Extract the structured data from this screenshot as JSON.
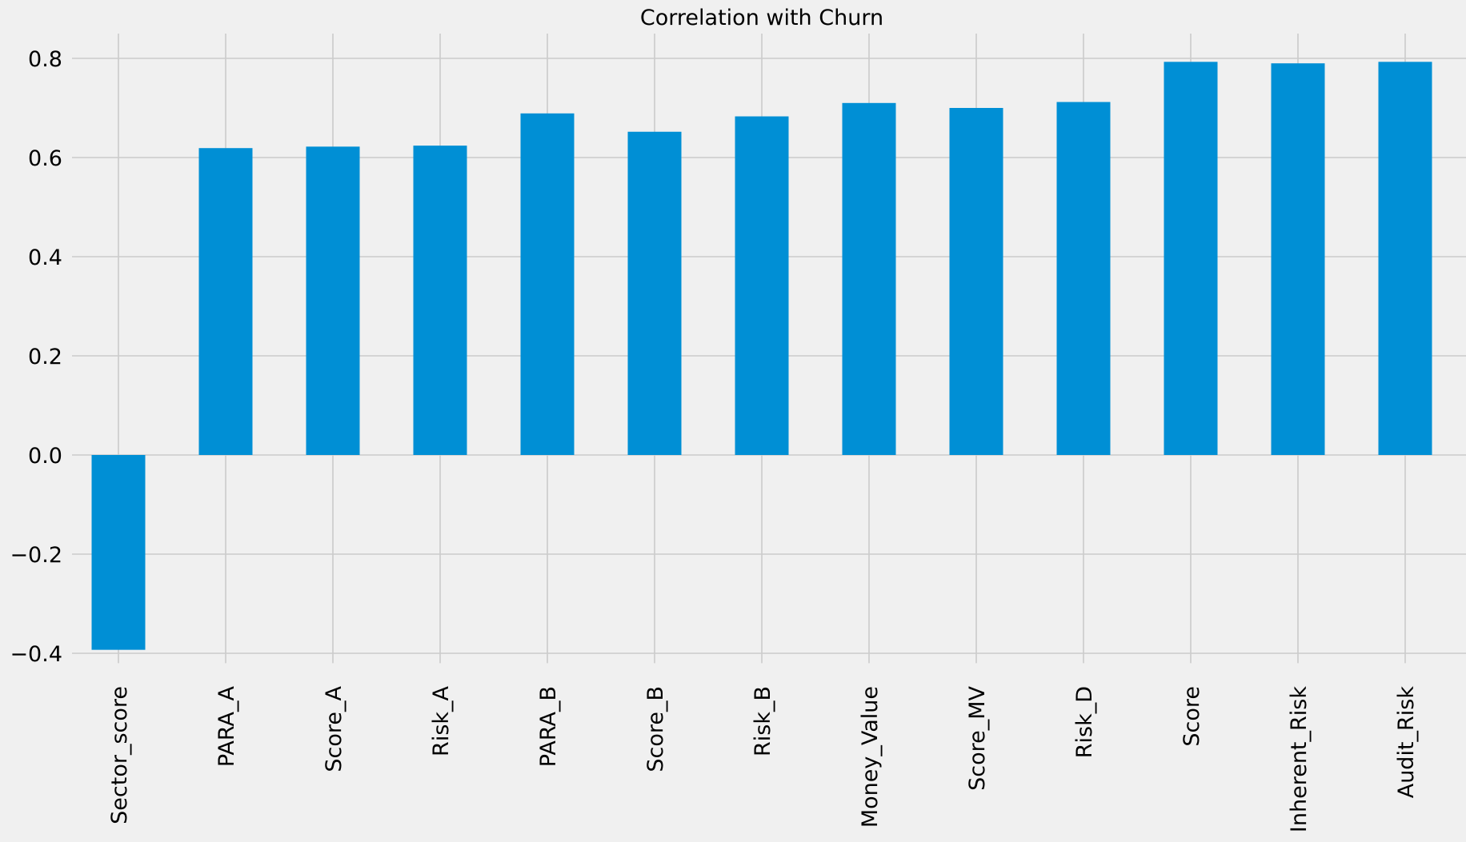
{
  "chart_data": {
    "type": "bar",
    "title": "Correlation with Churn",
    "xlabel": "",
    "ylabel": "",
    "categories": [
      "Sector_score",
      "PARA_A",
      "Score_A",
      "Risk_A",
      "PARA_B",
      "Score_B",
      "Risk_B",
      "Money_Value",
      "Score_MV",
      "Risk_D",
      "Score",
      "Inherent_Risk",
      "Audit_Risk"
    ],
    "values": [
      -0.393,
      0.619,
      0.622,
      0.624,
      0.689,
      0.652,
      0.683,
      0.71,
      0.7,
      0.712,
      0.793,
      0.79,
      0.793
    ],
    "ylim": [
      -0.42,
      0.85
    ],
    "yticks": [
      -0.4,
      -0.2,
      0.0,
      0.2,
      0.4,
      0.6,
      0.8
    ],
    "ytick_labels": [
      "−0.4",
      "−0.2",
      "0.0",
      "0.2",
      "0.4",
      "0.6",
      "0.8"
    ],
    "grid": true,
    "legend": "none",
    "bar_color": "#008fd5",
    "background_color": "#f0f0f0",
    "grid_color": "#cbcbcb"
  }
}
